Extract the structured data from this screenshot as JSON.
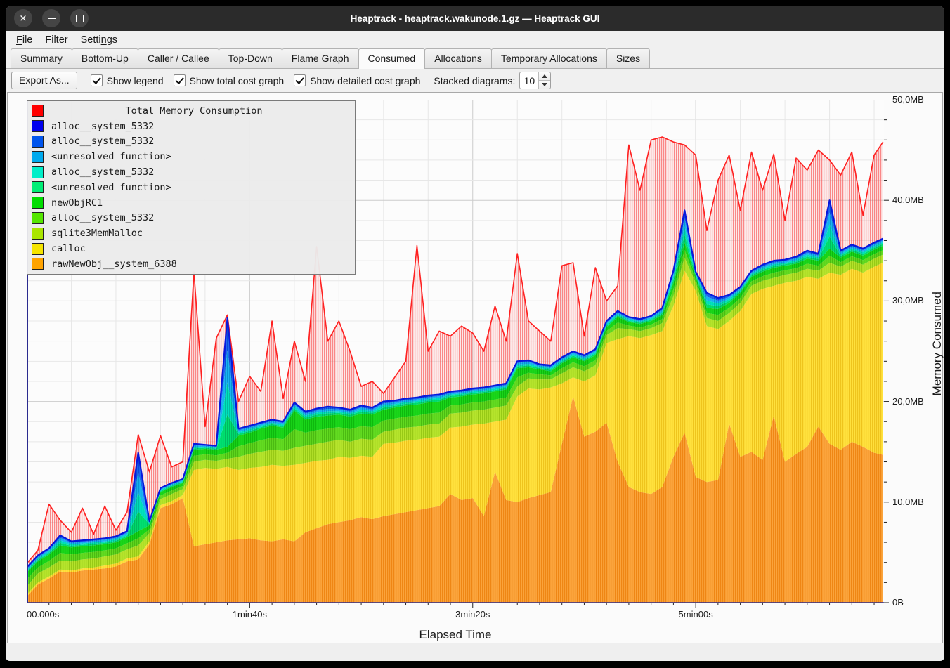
{
  "window": {
    "title": "Heaptrack - heaptrack.wakunode.1.gz — Heaptrack GUI",
    "controls": [
      "close",
      "minimize",
      "maximize"
    ]
  },
  "menu": {
    "items": [
      {
        "label": "File",
        "underline_index": 0
      },
      {
        "label": "Filter",
        "underline_index": null
      },
      {
        "label": "Settings",
        "underline_index": 5
      }
    ]
  },
  "tabs": {
    "active_index": 5,
    "items": [
      "Summary",
      "Bottom-Up",
      "Caller / Callee",
      "Top-Down",
      "Flame Graph",
      "Consumed",
      "Allocations",
      "Temporary Allocations",
      "Sizes"
    ]
  },
  "toolbar": {
    "export_label": "Export As...",
    "checkboxes": [
      {
        "label": "Show legend",
        "checked": true
      },
      {
        "label": "Show total cost graph",
        "checked": true
      },
      {
        "label": "Show detailed cost graph",
        "checked": true
      }
    ],
    "stacked_label": "Stacked diagrams:",
    "stacked_value": "10"
  },
  "legend": {
    "entries": [
      {
        "label": "Total Memory Consumption",
        "color": "#ff0000",
        "title_row": true
      },
      {
        "label": "alloc__system_5332",
        "color": "#0000ee",
        "title_row": false
      },
      {
        "label": "alloc__system_5332",
        "color": "#0055ee",
        "title_row": false
      },
      {
        "label": "<unresolved function>",
        "color": "#00aaee",
        "title_row": false
      },
      {
        "label": "alloc__system_5332",
        "color": "#00eec8",
        "title_row": false
      },
      {
        "label": "<unresolved function>",
        "color": "#00ee76",
        "title_row": false
      },
      {
        "label": "newObjRC1",
        "color": "#00dd00",
        "title_row": false
      },
      {
        "label": "alloc__system_5332",
        "color": "#55e600",
        "title_row": false
      },
      {
        "label": "sqlite3MemMalloc",
        "color": "#aae600",
        "title_row": false
      },
      {
        "label": "calloc",
        "color": "#f5e400",
        "title_row": false
      },
      {
        "label": "rawNewObj__system_6388",
        "color": "#ffa300",
        "title_row": false
      }
    ]
  },
  "chart_data": {
    "type": "area",
    "stacked": true,
    "xlabel": "Elapsed Time",
    "ylabel": "Memory Consumed",
    "x_unit": "seconds",
    "y_unit": "MB",
    "xlim": [
      0,
      384.4
    ],
    "ylim": [
      0,
      50
    ],
    "x_ticks": [
      {
        "label": "00.000s",
        "t": 0
      },
      {
        "label": "1min40s",
        "t": 100
      },
      {
        "label": "3min20s",
        "t": 200
      },
      {
        "label": "5min00s",
        "t": 300
      }
    ],
    "y_ticks": [
      {
        "label": "0B",
        "mb": 0
      },
      {
        "label": "10,0MB",
        "mb": 10
      },
      {
        "label": "20,0MB",
        "mb": 20
      },
      {
        "label": "30,0MB",
        "mb": 30
      },
      {
        "label": "40,0MB",
        "mb": 40
      },
      {
        "label": "50,0MB",
        "mb": 50
      }
    ],
    "grid": {
      "x_minor_step": 20,
      "x_major_step": 100,
      "y_minor_step": 2,
      "y_major_step": 10,
      "minor_color": "#e7e7e7",
      "major_color": "#cccccc"
    },
    "tick_steps": {
      "x_minor": 10,
      "y_minor": 2
    },
    "axis_color": "#2b2b8f",
    "t": [
      0,
      5,
      10,
      15,
      20,
      25,
      30,
      35,
      40,
      45,
      50,
      55,
      60,
      65,
      70,
      75,
      80,
      85,
      90,
      95,
      100,
      105,
      110,
      115,
      120,
      125,
      130,
      135,
      140,
      145,
      150,
      155,
      160,
      165,
      170,
      175,
      180,
      185,
      190,
      195,
      200,
      205,
      210,
      215,
      220,
      225,
      230,
      235,
      240,
      245,
      250,
      255,
      260,
      265,
      270,
      275,
      280,
      285,
      290,
      295,
      300,
      305,
      310,
      315,
      320,
      325,
      330,
      335,
      340,
      345,
      350,
      355,
      360,
      365,
      370,
      375,
      380,
      384
    ],
    "boundaries": {
      "orange_top": [
        0.6,
        1.8,
        2.4,
        3.1,
        3.0,
        3.2,
        3.3,
        3.4,
        3.6,
        4.1,
        4.3,
        5.8,
        9.4,
        9.8,
        10.4,
        5.6,
        5.8,
        6.0,
        6.2,
        6.3,
        6.4,
        6.2,
        6.1,
        6.3,
        6.1,
        7.0,
        7.4,
        7.8,
        8.0,
        8.2,
        8.5,
        8.3,
        8.6,
        8.8,
        9.0,
        9.2,
        9.4,
        9.6,
        10.8,
        10.2,
        10.4,
        8.6,
        13.0,
        10.2,
        10.0,
        10.4,
        10.7,
        11.0,
        15.8,
        20.5,
        16.5,
        17.0,
        17.9,
        14.0,
        11.5,
        11.0,
        10.8,
        11.5,
        14.5,
        16.9,
        12.5,
        12.0,
        12.2,
        17.8,
        14.5,
        15.0,
        14.2,
        18.6,
        14.0,
        14.8,
        15.5,
        17.5,
        15.8,
        15.2,
        16.0,
        15.5,
        14.9,
        14.7
      ],
      "calloc_top": [
        0.8,
        2.0,
        2.6,
        3.3,
        3.2,
        3.4,
        3.5,
        3.7,
        3.9,
        4.4,
        4.6,
        6.1,
        9.7,
        10.1,
        10.7,
        13.2,
        13.4,
        13.3,
        13.5,
        13.2,
        13.4,
        13.5,
        13.7,
        13.6,
        13.7,
        13.9,
        14.1,
        14.2,
        14.5,
        14.4,
        14.6,
        14.5,
        15.8,
        15.9,
        16.1,
        16.2,
        16.4,
        16.5,
        17.4,
        17.5,
        17.7,
        17.8,
        18.0,
        18.2,
        20.5,
        21.3,
        21.2,
        21.4,
        21.8,
        22.4,
        22.0,
        22.6,
        25.8,
        26.2,
        26.5,
        26.3,
        26.6,
        27.0,
        29.5,
        33.0,
        31.0,
        27.5,
        27.2,
        28.0,
        29.0,
        30.7,
        31.2,
        31.5,
        31.8,
        32.0,
        32.4,
        32.2,
        32.8,
        32.6,
        33.2,
        32.8,
        33.4,
        33.8
      ],
      "sqlite_top": [
        1.6,
        2.9,
        3.5,
        4.2,
        4.1,
        4.3,
        4.4,
        4.6,
        4.8,
        5.3,
        5.7,
        6.9,
        10.3,
        10.8,
        11.3,
        14.0,
        14.2,
        14.1,
        14.3,
        14.5,
        14.8,
        15.0,
        15.2,
        15.1,
        15.4,
        15.6,
        15.8,
        16.0,
        16.2,
        16.0,
        16.3,
        16.2,
        17.0,
        17.2,
        17.4,
        17.5,
        17.7,
        17.8,
        18.8,
        18.9,
        19.1,
        19.2,
        19.4,
        19.6,
        21.5,
        22.3,
        22.2,
        22.2,
        22.8,
        23.4,
        23.0,
        23.6,
        26.6,
        27.3,
        27.2,
        27.0,
        27.3,
        27.8,
        30.5,
        34.3,
        31.8,
        28.3,
        28.0,
        28.8,
        29.8,
        31.5,
        32.0,
        32.3,
        32.6,
        32.8,
        33.2,
        33.0,
        33.8,
        33.4,
        34.0,
        33.6,
        34.2,
        34.6
      ],
      "green_top": [
        3.0,
        4.1,
        4.8,
        5.7,
        5.5,
        5.6,
        5.7,
        5.8,
        6.0,
        6.5,
        7.1,
        7.7,
        11.0,
        11.5,
        11.9,
        15.2,
        15.3,
        15.2,
        15.5,
        16.6,
        16.9,
        17.3,
        17.6,
        17.4,
        19.1,
        18.2,
        18.5,
        18.6,
        18.7,
        18.5,
        18.8,
        18.7,
        19.2,
        19.4,
        19.6,
        19.7,
        19.9,
        20.0,
        20.4,
        20.5,
        20.7,
        20.8,
        21.0,
        21.2,
        23.3,
        23.4,
        23.2,
        23.0,
        23.8,
        24.4,
        24.0,
        24.6,
        27.4,
        28.4,
        27.9,
        27.7,
        28.0,
        28.6,
        31.8,
        35.8,
        32.4,
        29.3,
        29.2,
        29.8,
        30.8,
        32.4,
        32.9,
        33.3,
        33.5,
        33.7,
        34.2,
        34.0,
        35.2,
        34.3,
        34.9,
        34.5,
        35.1,
        35.5
      ],
      "stack_top": [
        3.5,
        4.7,
        5.4,
        6.7,
        6.1,
        6.2,
        6.3,
        6.4,
        6.6,
        7.1,
        14.9,
        8.1,
        11.4,
        11.9,
        12.3,
        15.8,
        15.7,
        15.6,
        28.3,
        17.3,
        17.6,
        17.9,
        18.2,
        18.0,
        19.9,
        19.0,
        19.3,
        19.5,
        19.4,
        19.2,
        19.6,
        19.4,
        20.0,
        20.1,
        20.3,
        20.4,
        20.6,
        20.7,
        21.0,
        21.1,
        21.3,
        21.4,
        21.6,
        21.8,
        24.0,
        24.1,
        23.7,
        23.6,
        24.4,
        25.0,
        24.6,
        25.2,
        28.0,
        29.0,
        28.4,
        28.2,
        28.5,
        29.3,
        33.0,
        39.0,
        32.9,
        30.8,
        30.3,
        30.6,
        31.4,
        33.0,
        33.6,
        34.0,
        34.1,
        34.4,
        35.0,
        34.7,
        40.0,
        35.0,
        35.6,
        35.2,
        35.8,
        36.2
      ],
      "total": [
        3.9,
        5.2,
        9.8,
        8.2,
        7.0,
        9.4,
        6.8,
        9.6,
        7.2,
        9.0,
        16.7,
        13.0,
        16.6,
        13.5,
        14.0,
        32.9,
        17.5,
        26.3,
        28.6,
        20.0,
        22.5,
        21.0,
        28.0,
        20.3,
        26.0,
        22.0,
        35.4,
        26.0,
        28.0,
        25.0,
        21.5,
        22.0,
        20.8,
        22.4,
        24.0,
        35.5,
        25.0,
        27.0,
        26.5,
        27.5,
        26.8,
        25.0,
        29.5,
        26.0,
        34.7,
        28.0,
        27.0,
        26.0,
        33.5,
        33.8,
        26.5,
        33.3,
        30.0,
        31.5,
        45.5,
        41.0,
        46.0,
        46.3,
        45.8,
        45.5,
        44.5,
        37.0,
        42.0,
        44.5,
        39.0,
        44.8,
        41.0,
        44.6,
        38.0,
        44.2,
        43.0,
        45.0,
        44.0,
        42.5,
        44.8,
        38.5,
        44.5,
        45.8
      ]
    },
    "band_styles": {
      "orange": {
        "fill": "#fba43c",
        "stripe": "#ef8614"
      },
      "calloc": {
        "fill": "#ffe13d",
        "stripe": "#efc41d"
      },
      "sqlite": {
        "fill": "#b5e42c",
        "stripe": "#98c916"
      },
      "green_a": {
        "fill": "#62db21",
        "stripe": "#4bbb12"
      },
      "green_b": {
        "fill": "#1ad71a",
        "stripe": "#0eb90e"
      },
      "spring": {
        "fill": "#00e070",
        "stripe": "#00ba5e"
      },
      "cyan": {
        "fill": "#00e2be",
        "stripe": "#00bc9e"
      },
      "sky": {
        "fill": "#19b5f2",
        "stripe": "#0a94d2"
      },
      "blue": {
        "fill": "#1d66f2",
        "stripe": "#0c49d4"
      },
      "stack_line_color": "#0818dc",
      "total_line_color": "#ff2020",
      "total_fill_bg": "rgba(255,130,130,0.15)",
      "total_stripe": "rgba(248,75,75,0.62)"
    }
  }
}
